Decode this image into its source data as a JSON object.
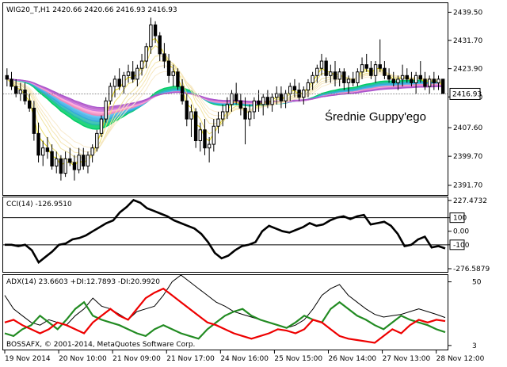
{
  "chart_data": [
    {
      "type": "candlestick",
      "panel": "price",
      "symbol_label": "WIG20_T,H1 2420.66 2420.66 2416.93 2416.93",
      "annotation": "Średnie Guppy'ego",
      "current_price_label": "2416.93",
      "current_price": 2416.93,
      "ylim": [
        2389.0,
        2442.0
      ],
      "y_ticks": [
        "2439.50",
        "2431.70",
        "2423.90",
        "2416.10",
        "2407.60",
        "2399.70",
        "2391.70"
      ],
      "y_tick_values": [
        2439.5,
        2431.7,
        2423.9,
        2416.1,
        2407.6,
        2399.7,
        2391.7
      ],
      "x_ticks": [
        "19 Nov 2014",
        "20 Nov 10:00",
        "21 Nov 09:00",
        "21 Nov 17:00",
        "24 Nov 16:00",
        "25 Nov 15:00",
        "26 Nov 14:00",
        "27 Nov 13:00",
        "28 Nov 12:00"
      ],
      "x_tick_bar_index": [
        0,
        12,
        24,
        36,
        48,
        60,
        72,
        84,
        96
      ],
      "candles": [
        {
          "o": 2422,
          "h": 2424,
          "l": 2419,
          "c": 2421
        },
        {
          "o": 2421,
          "h": 2423,
          "l": 2418,
          "c": 2419
        },
        {
          "o": 2419,
          "h": 2421,
          "l": 2416,
          "c": 2417
        },
        {
          "o": 2417,
          "h": 2420,
          "l": 2415,
          "c": 2418
        },
        {
          "o": 2418,
          "h": 2420,
          "l": 2414,
          "c": 2415
        },
        {
          "o": 2415,
          "h": 2417,
          "l": 2412,
          "c": 2413
        },
        {
          "o": 2413,
          "h": 2415,
          "l": 2404,
          "c": 2406
        },
        {
          "o": 2406,
          "h": 2409,
          "l": 2398,
          "c": 2400
        },
        {
          "o": 2400,
          "h": 2404,
          "l": 2397,
          "c": 2402
        },
        {
          "o": 2402,
          "h": 2405,
          "l": 2399,
          "c": 2401
        },
        {
          "o": 2401,
          "h": 2403,
          "l": 2396,
          "c": 2397
        },
        {
          "o": 2397,
          "h": 2401,
          "l": 2395,
          "c": 2399
        },
        {
          "o": 2399,
          "h": 2400,
          "l": 2393,
          "c": 2395
        },
        {
          "o": 2395,
          "h": 2401,
          "l": 2394,
          "c": 2399
        },
        {
          "o": 2399,
          "h": 2402,
          "l": 2397,
          "c": 2398
        },
        {
          "o": 2398,
          "h": 2400,
          "l": 2393,
          "c": 2396
        },
        {
          "o": 2396,
          "h": 2402,
          "l": 2395,
          "c": 2400
        },
        {
          "o": 2400,
          "h": 2402,
          "l": 2396,
          "c": 2397
        },
        {
          "o": 2397,
          "h": 2401,
          "l": 2395,
          "c": 2400
        },
        {
          "o": 2400,
          "h": 2403,
          "l": 2398,
          "c": 2402
        },
        {
          "o": 2402,
          "h": 2407,
          "l": 2401,
          "c": 2406
        },
        {
          "o": 2406,
          "h": 2411,
          "l": 2405,
          "c": 2410
        },
        {
          "o": 2410,
          "h": 2416,
          "l": 2409,
          "c": 2415
        },
        {
          "o": 2415,
          "h": 2420,
          "l": 2414,
          "c": 2419
        },
        {
          "o": 2419,
          "h": 2422,
          "l": 2416,
          "c": 2421
        },
        {
          "o": 2421,
          "h": 2424,
          "l": 2418,
          "c": 2419
        },
        {
          "o": 2419,
          "h": 2423,
          "l": 2417,
          "c": 2422
        },
        {
          "o": 2422,
          "h": 2425,
          "l": 2420,
          "c": 2423
        },
        {
          "o": 2423,
          "h": 2426,
          "l": 2420,
          "c": 2421
        },
        {
          "o": 2421,
          "h": 2425,
          "l": 2419,
          "c": 2424
        },
        {
          "o": 2424,
          "h": 2428,
          "l": 2422,
          "c": 2426
        },
        {
          "o": 2426,
          "h": 2431,
          "l": 2424,
          "c": 2430
        },
        {
          "o": 2430,
          "h": 2438,
          "l": 2428,
          "c": 2436
        },
        {
          "o": 2436,
          "h": 2437,
          "l": 2431,
          "c": 2433
        },
        {
          "o": 2433,
          "h": 2434,
          "l": 2426,
          "c": 2428
        },
        {
          "o": 2428,
          "h": 2431,
          "l": 2424,
          "c": 2426
        },
        {
          "o": 2426,
          "h": 2428,
          "l": 2420,
          "c": 2422
        },
        {
          "o": 2422,
          "h": 2425,
          "l": 2419,
          "c": 2423
        },
        {
          "o": 2423,
          "h": 2424,
          "l": 2418,
          "c": 2419
        },
        {
          "o": 2419,
          "h": 2421,
          "l": 2414,
          "c": 2415
        },
        {
          "o": 2415,
          "h": 2417,
          "l": 2408,
          "c": 2410
        },
        {
          "o": 2410,
          "h": 2414,
          "l": 2405,
          "c": 2412
        },
        {
          "o": 2412,
          "h": 2413,
          "l": 2402,
          "c": 2404
        },
        {
          "o": 2404,
          "h": 2409,
          "l": 2401,
          "c": 2407
        },
        {
          "o": 2407,
          "h": 2410,
          "l": 2400,
          "c": 2402
        },
        {
          "o": 2402,
          "h": 2405,
          "l": 2398,
          "c": 2403
        },
        {
          "o": 2403,
          "h": 2410,
          "l": 2401,
          "c": 2408
        },
        {
          "o": 2408,
          "h": 2412,
          "l": 2406,
          "c": 2410
        },
        {
          "o": 2410,
          "h": 2414,
          "l": 2408,
          "c": 2412
        },
        {
          "o": 2412,
          "h": 2416,
          "l": 2410,
          "c": 2414
        },
        {
          "o": 2414,
          "h": 2418,
          "l": 2412,
          "c": 2417
        },
        {
          "o": 2417,
          "h": 2420,
          "l": 2414,
          "c": 2415
        },
        {
          "o": 2415,
          "h": 2417,
          "l": 2411,
          "c": 2413
        },
        {
          "o": 2413,
          "h": 2416,
          "l": 2403,
          "c": 2410
        },
        {
          "o": 2410,
          "h": 2414,
          "l": 2408,
          "c": 2412
        },
        {
          "o": 2412,
          "h": 2416,
          "l": 2410,
          "c": 2415
        },
        {
          "o": 2415,
          "h": 2418,
          "l": 2412,
          "c": 2414
        },
        {
          "o": 2414,
          "h": 2417,
          "l": 2411,
          "c": 2416
        },
        {
          "o": 2416,
          "h": 2418,
          "l": 2413,
          "c": 2414
        },
        {
          "o": 2414,
          "h": 2417,
          "l": 2412,
          "c": 2416
        },
        {
          "o": 2416,
          "h": 2419,
          "l": 2414,
          "c": 2417
        },
        {
          "o": 2417,
          "h": 2419,
          "l": 2413,
          "c": 2415
        },
        {
          "o": 2415,
          "h": 2418,
          "l": 2413,
          "c": 2417
        },
        {
          "o": 2417,
          "h": 2420,
          "l": 2415,
          "c": 2419
        },
        {
          "o": 2419,
          "h": 2421,
          "l": 2416,
          "c": 2418
        },
        {
          "o": 2418,
          "h": 2420,
          "l": 2415,
          "c": 2416
        },
        {
          "o": 2416,
          "h": 2419,
          "l": 2414,
          "c": 2418
        },
        {
          "o": 2418,
          "h": 2421,
          "l": 2416,
          "c": 2420
        },
        {
          "o": 2420,
          "h": 2423,
          "l": 2418,
          "c": 2422
        },
        {
          "o": 2422,
          "h": 2425,
          "l": 2420,
          "c": 2424
        },
        {
          "o": 2424,
          "h": 2428,
          "l": 2422,
          "c": 2426
        },
        {
          "o": 2426,
          "h": 2427,
          "l": 2420,
          "c": 2422
        },
        {
          "o": 2422,
          "h": 2425,
          "l": 2420,
          "c": 2423
        },
        {
          "o": 2423,
          "h": 2426,
          "l": 2419,
          "c": 2421
        },
        {
          "o": 2421,
          "h": 2424,
          "l": 2419,
          "c": 2423
        },
        {
          "o": 2423,
          "h": 2424,
          "l": 2418,
          "c": 2420
        },
        {
          "o": 2420,
          "h": 2422,
          "l": 2417,
          "c": 2421
        },
        {
          "o": 2421,
          "h": 2423,
          "l": 2419,
          "c": 2420
        },
        {
          "o": 2420,
          "h": 2424,
          "l": 2419,
          "c": 2423
        },
        {
          "o": 2423,
          "h": 2427,
          "l": 2421,
          "c": 2425
        },
        {
          "o": 2425,
          "h": 2428,
          "l": 2423,
          "c": 2424
        },
        {
          "o": 2424,
          "h": 2426,
          "l": 2421,
          "c": 2422
        },
        {
          "o": 2422,
          "h": 2426,
          "l": 2420,
          "c": 2425
        },
        {
          "o": 2425,
          "h": 2432,
          "l": 2423,
          "c": 2424
        },
        {
          "o": 2424,
          "h": 2426,
          "l": 2421,
          "c": 2422
        },
        {
          "o": 2422,
          "h": 2424,
          "l": 2420,
          "c": 2421
        },
        {
          "o": 2421,
          "h": 2423,
          "l": 2419,
          "c": 2420
        },
        {
          "o": 2420,
          "h": 2422,
          "l": 2418,
          "c": 2421
        },
        {
          "o": 2421,
          "h": 2425,
          "l": 2419,
          "c": 2422
        },
        {
          "o": 2422,
          "h": 2424,
          "l": 2420,
          "c": 2421
        },
        {
          "o": 2421,
          "h": 2423,
          "l": 2419,
          "c": 2420
        },
        {
          "o": 2420,
          "h": 2423,
          "l": 2417,
          "c": 2422
        },
        {
          "o": 2422,
          "h": 2426,
          "l": 2420,
          "c": 2421
        },
        {
          "o": 2421,
          "h": 2423,
          "l": 2418,
          "c": 2419
        },
        {
          "o": 2419,
          "h": 2422,
          "l": 2417,
          "c": 2421
        },
        {
          "o": 2421,
          "h": 2423,
          "l": 2418,
          "c": 2420
        },
        {
          "o": 2420,
          "h": 2422,
          "l": 2418,
          "c": 2421
        },
        {
          "o": 2421,
          "h": 2421,
          "l": 2417,
          "c": 2417
        }
      ],
      "guppy": {
        "short_colors": [
          "#E8D800",
          "#EEE070",
          "#F0E3A0",
          "#F4E5B0",
          "#F6E7C0",
          "#F8EACC"
        ],
        "long_colors": [
          "#00CC66",
          "#22BBAA",
          "#33AADD",
          "#55BBEE",
          "#EE88BB",
          "#FFAAD8",
          "#CC77DD",
          "#BB66CC",
          "#AA55CC"
        ]
      }
    },
    {
      "type": "line",
      "panel": "cci",
      "label": "CCI(14) -126.9510",
      "ylim": [
        -300,
        250
      ],
      "y_ticks": [
        "227.4732",
        "100",
        "0.00",
        "-100",
        "-276.5879"
      ],
      "y_tick_values": [
        227.4732,
        100,
        0,
        -100,
        -276.5879
      ],
      "levels": [
        100,
        -100
      ],
      "series": [
        {
          "values": [
            -100,
            -100,
            -110,
            -100,
            -140,
            -230,
            -190,
            -150,
            -100,
            -90,
            -60,
            -50,
            -30,
            0,
            30,
            60,
            80,
            140,
            180,
            230,
            210,
            170,
            150,
            130,
            110,
            80,
            60,
            40,
            20,
            -20,
            -80,
            -160,
            -200,
            -180,
            -140,
            -110,
            -100,
            -80,
            0,
            40,
            20,
            0,
            -10,
            10,
            30,
            60,
            40,
            50,
            80,
            100,
            110,
            90,
            110,
            120,
            50,
            60,
            70,
            40,
            -20,
            -110,
            -100,
            -60,
            -40,
            -120,
            -110,
            -127
          ],
          "color": "#000000"
        }
      ]
    },
    {
      "type": "line",
      "panel": "adx",
      "label": "ADX(14) 23.6603 +DI:12.7893 -DI:20.9920",
      "watermark": "BOSSAFX, © 2001-2014, MetaQuotes Software Corp.",
      "ylim": [
        0,
        55
      ],
      "y_ticks": [
        "50",
        "3"
      ],
      "y_tick_values": [
        50,
        3
      ],
      "series": [
        {
          "values": [
            40,
            30,
            25,
            20,
            18,
            22,
            20,
            18,
            25,
            30,
            38,
            32,
            30,
            26,
            22,
            28,
            30,
            32,
            40,
            50,
            55,
            50,
            45,
            40,
            35,
            32,
            28,
            26,
            24,
            22,
            20,
            18,
            16,
            18,
            22,
            30,
            40,
            45,
            48,
            40,
            35,
            30,
            26,
            24,
            25,
            26,
            28,
            30,
            28,
            26,
            23.66
          ],
          "color": "#000000"
        },
        {
          "values": [
            12,
            10,
            15,
            18,
            25,
            20,
            15,
            22,
            30,
            35,
            25,
            22,
            20,
            18,
            15,
            12,
            10,
            15,
            18,
            15,
            12,
            10,
            8,
            15,
            20,
            25,
            28,
            30,
            25,
            22,
            20,
            18,
            16,
            20,
            25,
            22,
            20,
            30,
            35,
            30,
            25,
            22,
            18,
            15,
            20,
            25,
            22,
            20,
            18,
            15,
            12.79
          ],
          "color": "#228B22"
        },
        {
          "values": [
            20,
            22,
            18,
            15,
            12,
            15,
            20,
            18,
            15,
            12,
            20,
            25,
            30,
            25,
            22,
            30,
            38,
            42,
            45,
            40,
            35,
            30,
            25,
            20,
            18,
            15,
            12,
            10,
            8,
            10,
            12,
            15,
            14,
            12,
            15,
            22,
            20,
            15,
            10,
            8,
            7,
            6,
            5,
            10,
            15,
            12,
            18,
            22,
            20,
            22,
            20.99
          ],
          "color": "#EE0000"
        }
      ]
    }
  ]
}
